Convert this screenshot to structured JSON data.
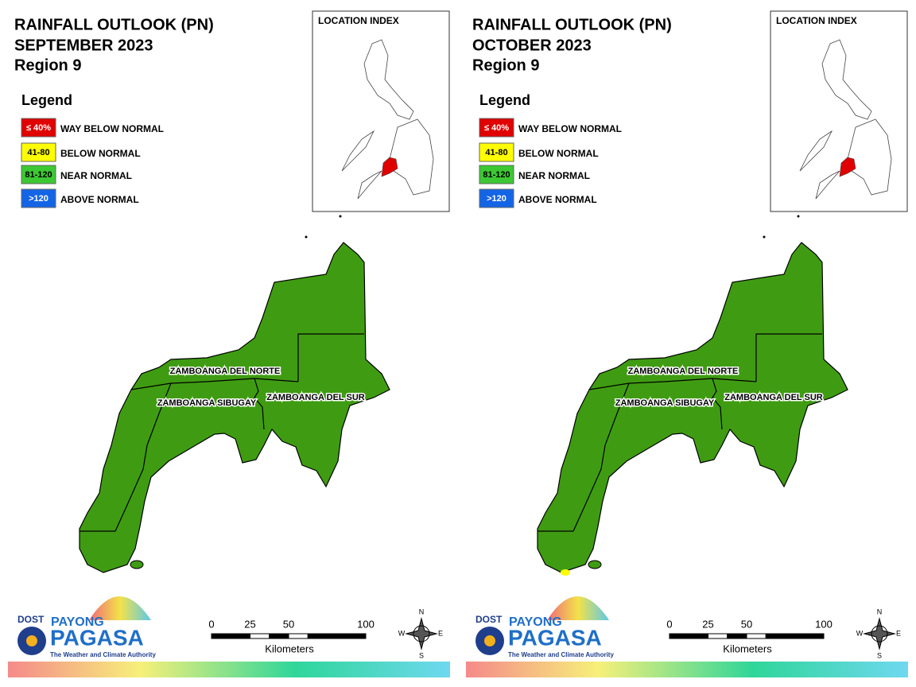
{
  "panels": [
    {
      "title": "RAINFALL OUTLOOK (PN)",
      "period": "SEPTEMBER 2023",
      "region": "Region 9",
      "legend": {
        "title": "Legend",
        "items": [
          {
            "label": "≤ 40%",
            "description": "WAY BELOW NORMAL",
            "color": "#e00000",
            "text_color": "#ffffff"
          },
          {
            "label": "41-80",
            "description": "BELOW NORMAL",
            "color": "#ffff00",
            "text_color": "#000000"
          },
          {
            "label": "81-120",
            "description": "NEAR NORMAL",
            "color": "#3cc832",
            "text_color": "#000000"
          },
          {
            "label": ">120",
            "description": "ABOVE NORMAL",
            "color": "#1464e6",
            "text_color": "#ffffff"
          }
        ]
      },
      "location_index": "LOCATION INDEX",
      "provinces": [
        "ZAMBOANGA DEL NORTE",
        "ZAMBOANGA SIBUGAY",
        "ZAMBOANGA DEL SUR"
      ],
      "scale": {
        "ticks": [
          0,
          25,
          50,
          100
        ],
        "unit": "Kilometers"
      },
      "compass": {
        "n": "N",
        "e": "E",
        "s": "S",
        "w": "W"
      },
      "logo": {
        "agency": "DOST",
        "brand_top": "PAYONG",
        "brand": "PAGASA",
        "tagline": "The Weather and Climate Authority"
      }
    },
    {
      "title": "RAINFALL OUTLOOK (PN)",
      "period": "OCTOBER 2023",
      "region": "Region 9",
      "legend": {
        "title": "Legend",
        "items": [
          {
            "label": "≤ 40%",
            "description": "WAY BELOW NORMAL",
            "color": "#e00000",
            "text_color": "#ffffff"
          },
          {
            "label": "41-80",
            "description": "BELOW NORMAL",
            "color": "#ffff00",
            "text_color": "#000000"
          },
          {
            "label": "81-120",
            "description": "NEAR NORMAL",
            "color": "#3cc832",
            "text_color": "#000000"
          },
          {
            "label": ">120",
            "description": "ABOVE NORMAL",
            "color": "#1464e6",
            "text_color": "#ffffff"
          }
        ]
      },
      "location_index": "LOCATION INDEX",
      "provinces": [
        "ZAMBOANGA DEL NORTE",
        "ZAMBOANGA SIBUGAY",
        "ZAMBOANGA DEL SUR"
      ],
      "scale": {
        "ticks": [
          0,
          25,
          50,
          100
        ],
        "unit": "Kilometers"
      },
      "compass": {
        "n": "N",
        "e": "E",
        "s": "S",
        "w": "W"
      },
      "logo": {
        "agency": "DOST",
        "brand_top": "PAYONG",
        "brand": "PAGASA",
        "tagline": "The Weather and Climate Authority"
      }
    }
  ]
}
